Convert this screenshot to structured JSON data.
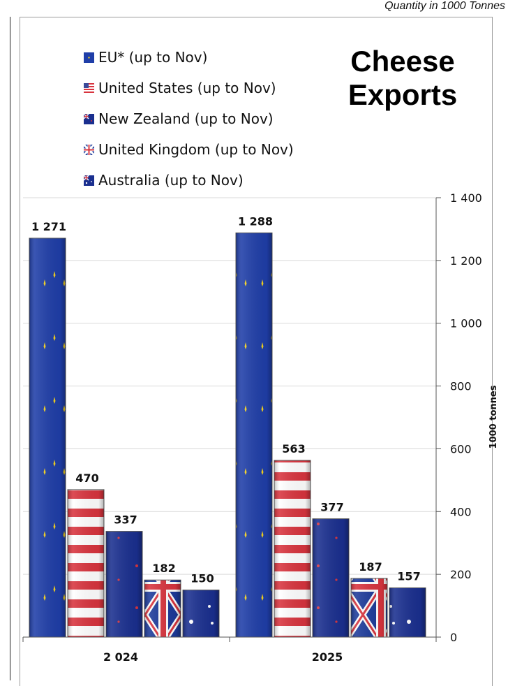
{
  "page_note": "Quantity in 1000 Tonnes",
  "chart_data": {
    "type": "bar",
    "title": "Cheese Exports",
    "title_lines": [
      "Cheese",
      "Exports"
    ],
    "ylabel": "1000 tonnes",
    "ylim": [
      0,
      1400
    ],
    "yticks": [
      0,
      200,
      400,
      600,
      800,
      1000,
      1200,
      1400
    ],
    "ytick_labels": [
      "0",
      "200",
      "400",
      "600",
      "800",
      "1 000",
      "1 200",
      "1 400"
    ],
    "categories": [
      "2 024",
      "2025"
    ],
    "series": [
      {
        "name": "EU* (up to Nov)",
        "values": [
          1271,
          1288
        ],
        "labels": [
          "1 271",
          "1 288"
        ],
        "pattern": "eu",
        "color": "#1f3ea8"
      },
      {
        "name": "United States (up to Nov)",
        "values": [
          470,
          563
        ],
        "labels": [
          "470",
          "563"
        ],
        "pattern": "us",
        "color": "#d8343e"
      },
      {
        "name": "New Zealand (up to Nov)",
        "values": [
          337,
          377
        ],
        "labels": [
          "337",
          "377"
        ],
        "pattern": "nz",
        "color": "#1a2f8f"
      },
      {
        "name": "United Kingdom (up to Nov)",
        "values": [
          182,
          187
        ],
        "labels": [
          "182",
          "187"
        ],
        "pattern": "uk",
        "color": "#1c3a9a"
      },
      {
        "name": "Australia (up to Nov)",
        "values": [
          150,
          157
        ],
        "labels": [
          "150",
          "157"
        ],
        "pattern": "au",
        "color": "#1a2f8f"
      }
    ],
    "grid": true,
    "legend_position": "top-left"
  }
}
